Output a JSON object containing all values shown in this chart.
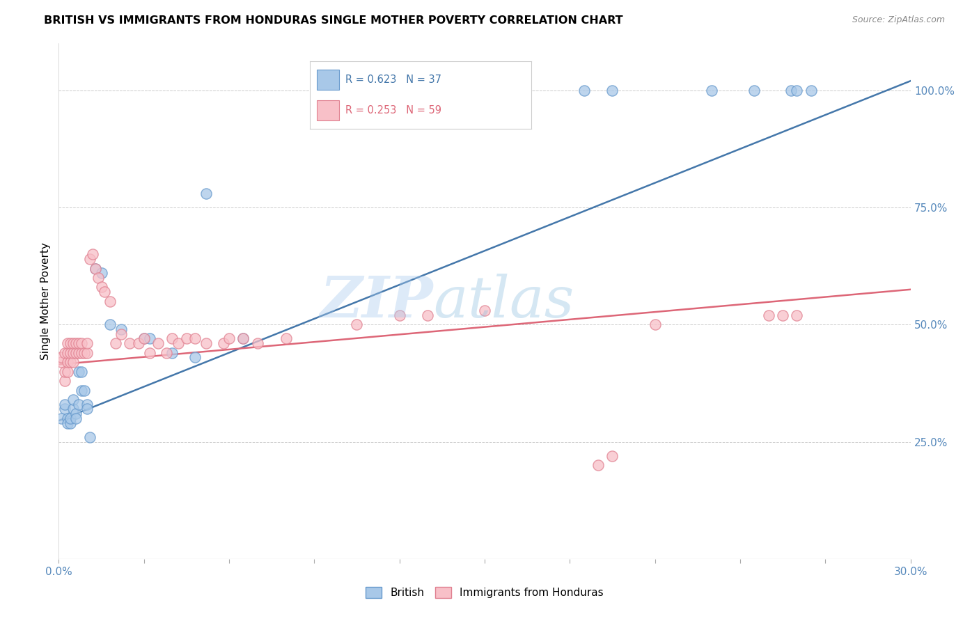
{
  "title": "BRITISH VS IMMIGRANTS FROM HONDURAS SINGLE MOTHER POVERTY CORRELATION CHART",
  "source": "Source: ZipAtlas.com",
  "ylabel": "Single Mother Poverty",
  "right_yticks": [
    "100.0%",
    "75.0%",
    "50.0%",
    "25.0%"
  ],
  "right_ytick_vals": [
    1.0,
    0.75,
    0.5,
    0.25
  ],
  "legend1_text": "R = 0.623   N = 37",
  "legend2_text": "R = 0.253   N = 59",
  "blue_scatter_color": "#A8C8E8",
  "blue_edge_color": "#6699CC",
  "pink_scatter_color": "#F8C0C8",
  "pink_edge_color": "#E08090",
  "blue_line_color": "#4477AA",
  "pink_line_color": "#DD6677",
  "watermark_zip": "ZIP",
  "watermark_atlas": "atlas",
  "xlim": [
    0.0,
    0.3
  ],
  "ylim": [
    0.0,
    1.1
  ],
  "blue_line_x0": 0.0,
  "blue_line_y0": 0.295,
  "blue_line_x1": 0.3,
  "blue_line_y1": 1.02,
  "pink_line_x0": 0.0,
  "pink_line_y0": 0.415,
  "pink_line_x1": 0.3,
  "pink_line_y1": 0.575,
  "british_x": [
    0.001,
    0.002,
    0.002,
    0.003,
    0.003,
    0.004,
    0.004,
    0.005,
    0.005,
    0.006,
    0.006,
    0.007,
    0.007,
    0.008,
    0.008,
    0.009,
    0.01,
    0.01,
    0.011,
    0.013,
    0.015,
    0.018,
    0.022,
    0.03,
    0.032,
    0.04,
    0.048,
    0.052,
    0.065,
    0.155,
    0.185,
    0.195,
    0.23,
    0.245,
    0.258,
    0.26,
    0.265
  ],
  "british_y": [
    0.3,
    0.32,
    0.33,
    0.3,
    0.29,
    0.29,
    0.3,
    0.32,
    0.34,
    0.31,
    0.3,
    0.33,
    0.4,
    0.4,
    0.36,
    0.36,
    0.33,
    0.32,
    0.26,
    0.62,
    0.61,
    0.5,
    0.49,
    0.47,
    0.47,
    0.44,
    0.43,
    0.78,
    0.47,
    1.0,
    1.0,
    1.0,
    1.0,
    1.0,
    1.0,
    1.0,
    1.0
  ],
  "honduras_x": [
    0.001,
    0.001,
    0.002,
    0.002,
    0.002,
    0.003,
    0.003,
    0.003,
    0.003,
    0.004,
    0.004,
    0.004,
    0.005,
    0.005,
    0.005,
    0.006,
    0.006,
    0.007,
    0.007,
    0.008,
    0.008,
    0.009,
    0.01,
    0.01,
    0.011,
    0.012,
    0.013,
    0.014,
    0.015,
    0.016,
    0.018,
    0.02,
    0.022,
    0.025,
    0.028,
    0.03,
    0.032,
    0.035,
    0.038,
    0.04,
    0.042,
    0.045,
    0.048,
    0.052,
    0.058,
    0.06,
    0.065,
    0.07,
    0.08,
    0.105,
    0.12,
    0.13,
    0.15,
    0.19,
    0.195,
    0.21,
    0.25,
    0.255,
    0.26
  ],
  "honduras_y": [
    0.42,
    0.43,
    0.38,
    0.4,
    0.44,
    0.4,
    0.42,
    0.44,
    0.46,
    0.42,
    0.44,
    0.46,
    0.42,
    0.44,
    0.46,
    0.44,
    0.46,
    0.44,
    0.46,
    0.44,
    0.46,
    0.44,
    0.44,
    0.46,
    0.64,
    0.65,
    0.62,
    0.6,
    0.58,
    0.57,
    0.55,
    0.46,
    0.48,
    0.46,
    0.46,
    0.47,
    0.44,
    0.46,
    0.44,
    0.47,
    0.46,
    0.47,
    0.47,
    0.46,
    0.46,
    0.47,
    0.47,
    0.46,
    0.47,
    0.5,
    0.52,
    0.52,
    0.53,
    0.2,
    0.22,
    0.5,
    0.52,
    0.52,
    0.52
  ]
}
